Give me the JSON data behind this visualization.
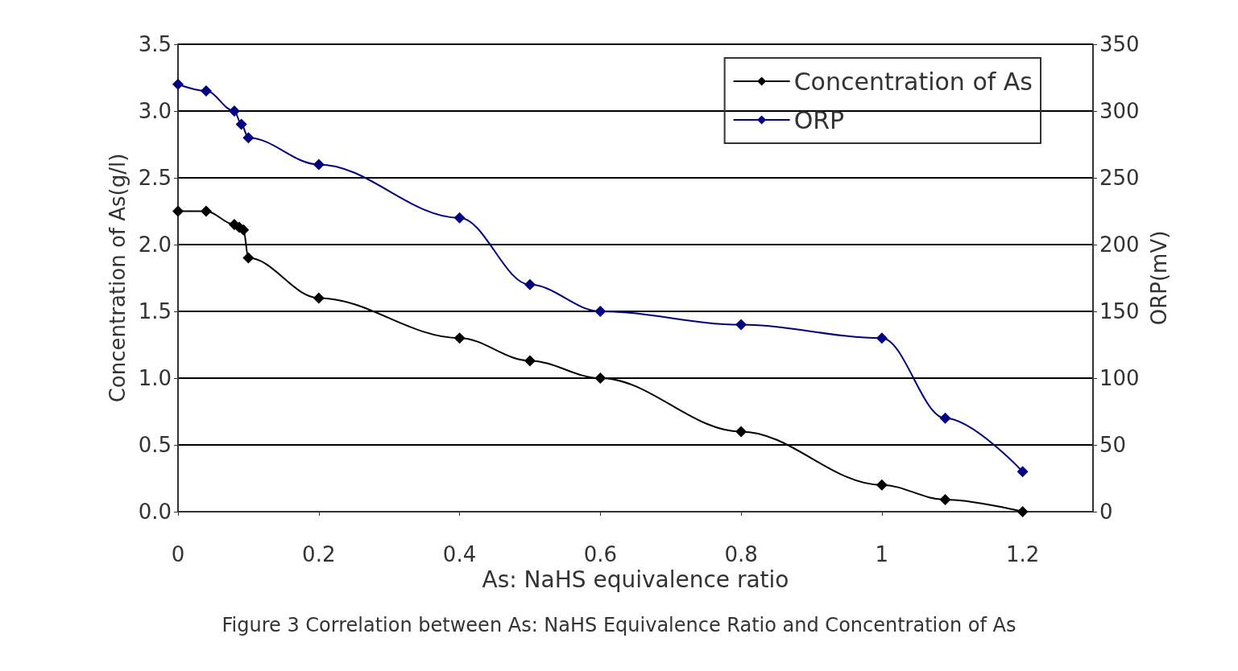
{
  "chart_data": {
    "type": "line",
    "xlabel": "As: NaHS equivalence ratio",
    "ylabel": "Concentration of As(g/l)",
    "y2label": "ORP(mV)",
    "annotations": [
      "Figure 3 Correlation between As: NaHS Equivalence Ratio and Concentration of As"
    ],
    "xlim": [
      0,
      1.3
    ],
    "xticks": [
      0,
      0.2,
      0.4,
      0.6,
      0.8,
      1,
      1.2
    ],
    "ylim": [
      0,
      3.5
    ],
    "yticks": [
      {
        "value": 0,
        "label": "0.0"
      },
      0.5,
      {
        "value": 1,
        "label": "1.0"
      },
      1.5,
      {
        "value": 2,
        "label": "2.0"
      },
      2.5,
      {
        "value": 3,
        "label": "3.0"
      },
      3.5
    ],
    "y2lim": [
      0,
      350
    ],
    "y2ticks": [
      0,
      50,
      100,
      150,
      200,
      250,
      300,
      350
    ],
    "grid": "y",
    "legend": "top right",
    "marker": "diamond",
    "line_style": "solid",
    "series": [
      {
        "name": "Concentration of As",
        "color": "#000000",
        "x": [
          0,
          0.04,
          0.08,
          0.087,
          0.093,
          0.1,
          0.2,
          0.4,
          0.5,
          0.6,
          0.8,
          1,
          1.09,
          1.2
        ],
        "values": [
          2.25,
          2.25,
          2.15,
          2.13,
          2.11,
          1.9,
          1.6,
          1.3,
          1.13,
          1,
          0.6,
          0.2,
          0.09,
          0
        ]
      },
      {
        "name": "ORP",
        "color": "#000080",
        "axis": "y2",
        "x": [
          0,
          0.04,
          0.08,
          0.09,
          0.1,
          0.2,
          0.4,
          0.5,
          0.6,
          0.8,
          1,
          1.09,
          1.2
        ],
        "values": [
          320,
          315,
          300,
          290,
          280,
          260,
          220,
          170,
          150,
          140,
          130,
          70,
          30
        ]
      }
    ]
  }
}
